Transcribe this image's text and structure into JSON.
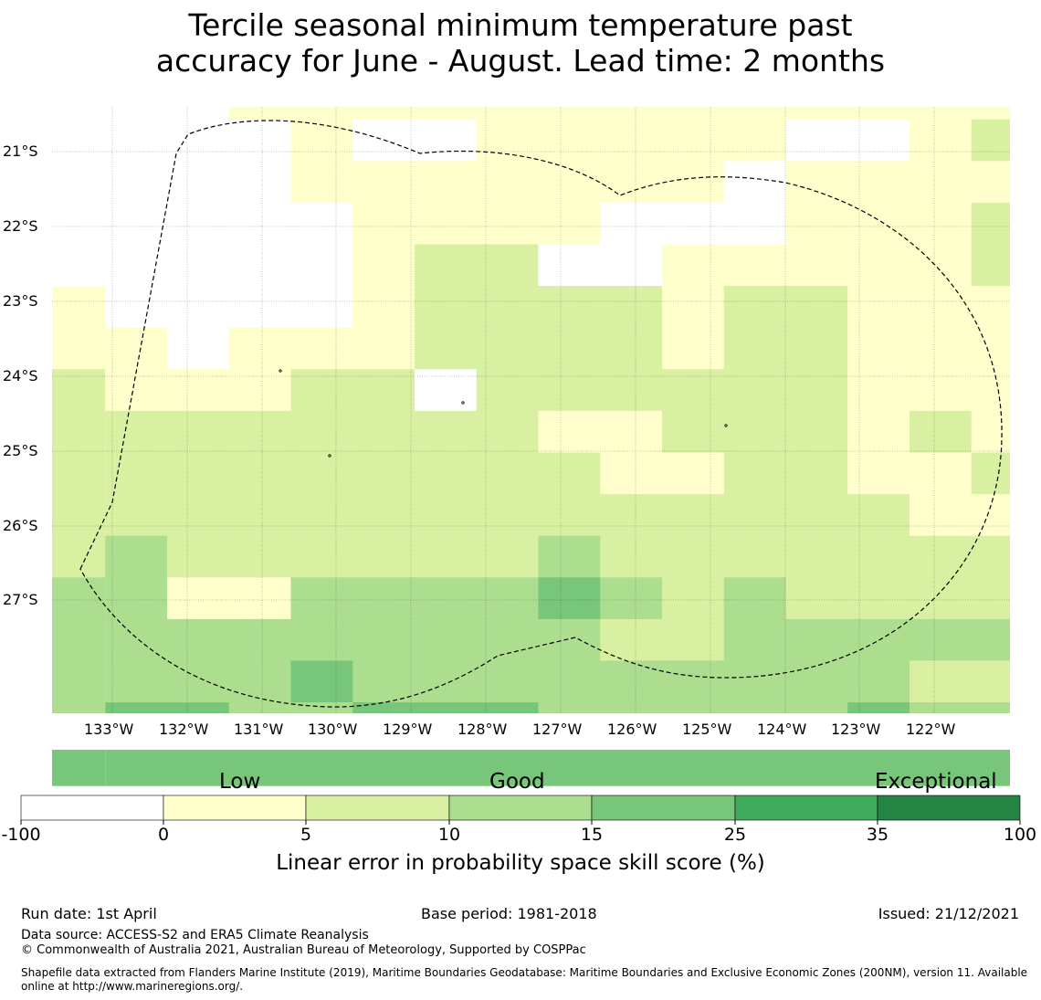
{
  "title": {
    "line1": "Tercile seasonal minimum temperature past",
    "line2": "accuracy for June - August. Lead time: 2 months"
  },
  "map": {
    "lat_labels": [
      "21°S",
      "22°S",
      "23°S",
      "24°S",
      "25°S",
      "26°S",
      "27°S"
    ],
    "lon_labels": [
      "133°W",
      "132°W",
      "131°W",
      "130°W",
      "129°W",
      "128°W",
      "127°W",
      "126°W",
      "125°W",
      "124°W",
      "123°W",
      "122°W"
    ],
    "grid_colors": [
      "#ffffff",
      "#ffffcc",
      "#d9f0a3",
      "#addd8e",
      "#78c679",
      "#41ab5d",
      "#238443"
    ],
    "grid_cells": [
      "0001111111111111",
      "0000100111110012",
      "0000111111101111",
      "0000011110001112",
      "0000012200111112",
      "1000012222122111",
      "1101112222122111",
      "2111220222222111",
      "2222222211222121",
      "2222222221122112",
      "2222222222222211",
      "2322222232222222",
      "3311333343232222",
      "3333333332233333",
      "3333433333333322",
      "3443344433333433",
      "4444444444444444"
    ],
    "note": ""
  },
  "colorbar": {
    "categories": [
      "Low",
      "Good",
      "Exceptional"
    ],
    "ticks": [
      "-100",
      "0",
      "5",
      "10",
      "15",
      "25",
      "35",
      "100"
    ],
    "colors": [
      "#ffffff",
      "#ffffcc",
      "#d9f0a3",
      "#addd8e",
      "#78c679",
      "#41ab5d",
      "#238443"
    ],
    "label": "Linear error in probability space skill score (%)"
  },
  "footer": {
    "run_date": "Run date: 1st April",
    "base_period": "Base period: 1981-2018",
    "issued": "Issued: 21/12/2021",
    "data_source": "Data source: ACCESS-S2 and ERA5 Climate Reanalysis",
    "copyright": "© Commonwealth of Australia 2021, Australian Bureau of Meteorology, Supported by COSPPac",
    "shapefile_line1": "Shapefile data extracted from Flanders Marine Institute (2019), Maritime Boundaries Geodatabase: Maritime Boundaries and Exclusive Economic Zones (200NM), version 11. Available",
    "shapefile_line2": "online at http://www.marineregions.org/."
  }
}
